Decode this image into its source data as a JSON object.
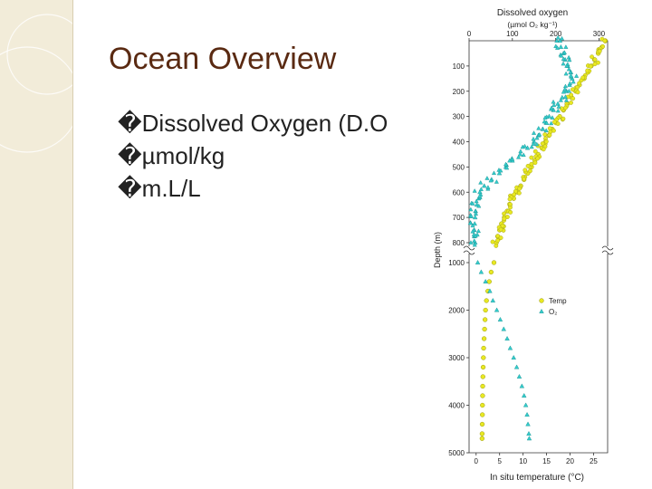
{
  "slide": {
    "title": "Ocean Overview",
    "bullets": [
      "�Dissolved Oxygen (D.O",
      "�µmol/kg",
      "�m.L/L"
    ]
  },
  "colors": {
    "title": "#5a2a12",
    "band": "#f2ecd9",
    "temp": "#e8e822",
    "oxygen": "#33cccc"
  },
  "chart_data": {
    "type": "scatter",
    "top_axis_title": "Dissolved oxygen",
    "top_axis_unit": "(µmol O₂ kg⁻¹)",
    "top_axis": {
      "ticks": [
        "0",
        "100",
        "200",
        "300"
      ],
      "range": [
        0,
        320
      ]
    },
    "bottom_axis_title": "In situ temperature (°C)",
    "bottom_axis": {
      "ticks": [
        "0",
        "5",
        "10",
        "15",
        "20",
        "25"
      ],
      "range": [
        -1.5,
        28
      ]
    },
    "ylabel": "Depth (m)",
    "upper_yticks": [
      "100",
      "200",
      "300",
      "400",
      "500",
      "600",
      "700",
      "800"
    ],
    "lower_yticks": [
      "1000",
      "2000",
      "3000",
      "4000",
      "5000"
    ],
    "axis_break": "between 800 m and 1000 m",
    "legend": {
      "position": "bottom-right",
      "entries": [
        "Temp",
        "O₂"
      ]
    },
    "series": [
      {
        "name": "Temp",
        "axis": "temperature",
        "points": [
          [
            0,
            27.5
          ],
          [
            25,
            26.8
          ],
          [
            50,
            26
          ],
          [
            75,
            25.2
          ],
          [
            100,
            24.5
          ],
          [
            125,
            23.8
          ],
          [
            150,
            23
          ],
          [
            175,
            22
          ],
          [
            200,
            21.2
          ],
          [
            225,
            20.3
          ],
          [
            250,
            19.4
          ],
          [
            275,
            18.6
          ],
          [
            300,
            17.8
          ],
          [
            325,
            17
          ],
          [
            350,
            16.2
          ],
          [
            375,
            15.5
          ],
          [
            400,
            14.8
          ],
          [
            425,
            14
          ],
          [
            450,
            13.2
          ],
          [
            475,
            12.5
          ],
          [
            500,
            11.8
          ],
          [
            525,
            11
          ],
          [
            550,
            10.2
          ],
          [
            575,
            9.5
          ],
          [
            600,
            8.8
          ],
          [
            625,
            8
          ],
          [
            650,
            7.2
          ],
          [
            675,
            6.6
          ],
          [
            700,
            6
          ],
          [
            725,
            5.4
          ],
          [
            750,
            5
          ],
          [
            775,
            4.6
          ],
          [
            800,
            4.3
          ],
          [
            1000,
            3.8
          ],
          [
            1200,
            3.2
          ],
          [
            1400,
            2.8
          ],
          [
            1600,
            2.5
          ],
          [
            1800,
            2.2
          ],
          [
            2000,
            2
          ],
          [
            2200,
            1.9
          ],
          [
            2400,
            1.8
          ],
          [
            2600,
            1.7
          ],
          [
            2800,
            1.6
          ],
          [
            3000,
            1.55
          ],
          [
            3200,
            1.5
          ],
          [
            3400,
            1.45
          ],
          [
            3600,
            1.4
          ],
          [
            3800,
            1.38
          ],
          [
            4000,
            1.35
          ],
          [
            4200,
            1.33
          ],
          [
            4400,
            1.3
          ],
          [
            4600,
            1.28
          ],
          [
            4700,
            1.27
          ]
        ]
      },
      {
        "name": "O₂",
        "axis": "oxygen",
        "points": [
          [
            0,
            210
          ],
          [
            25,
            212
          ],
          [
            50,
            218
          ],
          [
            75,
            222
          ],
          [
            100,
            228
          ],
          [
            125,
            235
          ],
          [
            150,
            238
          ],
          [
            175,
            232
          ],
          [
            200,
            225
          ],
          [
            225,
            215
          ],
          [
            250,
            205
          ],
          [
            275,
            195
          ],
          [
            300,
            185
          ],
          [
            325,
            178
          ],
          [
            350,
            170
          ],
          [
            375,
            160
          ],
          [
            400,
            150
          ],
          [
            425,
            135
          ],
          [
            450,
            118
          ],
          [
            475,
            100
          ],
          [
            500,
            85
          ],
          [
            525,
            70
          ],
          [
            550,
            52
          ],
          [
            575,
            35
          ],
          [
            600,
            25
          ],
          [
            625,
            22
          ],
          [
            650,
            18
          ],
          [
            675,
            15
          ],
          [
            700,
            14
          ],
          [
            725,
            13
          ],
          [
            750,
            12
          ],
          [
            775,
            12
          ],
          [
            800,
            14
          ],
          [
            1000,
            20
          ],
          [
            1200,
            28
          ],
          [
            1400,
            38
          ],
          [
            1600,
            48
          ],
          [
            1800,
            55
          ],
          [
            2000,
            64
          ],
          [
            2200,
            72
          ],
          [
            2400,
            80
          ],
          [
            2600,
            88
          ],
          [
            2800,
            95
          ],
          [
            3000,
            103
          ],
          [
            3200,
            110
          ],
          [
            3400,
            116
          ],
          [
            3600,
            122
          ],
          [
            3800,
            127
          ],
          [
            4000,
            131
          ],
          [
            4200,
            134
          ],
          [
            4400,
            136
          ],
          [
            4600,
            138
          ],
          [
            4700,
            139
          ]
        ]
      }
    ]
  }
}
